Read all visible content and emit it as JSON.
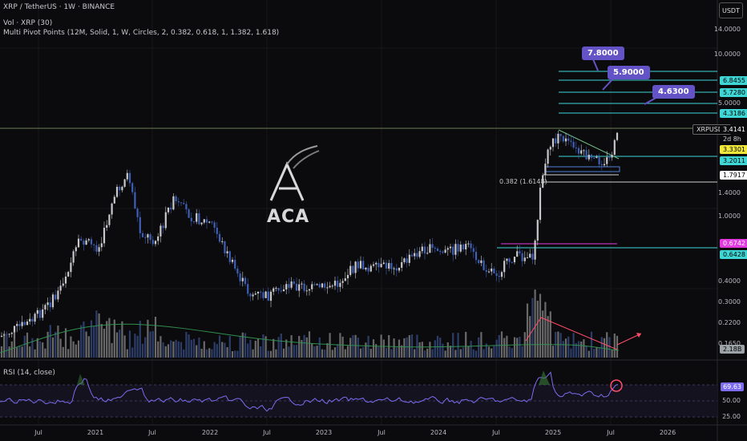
{
  "header": {
    "symbol_line": "XRP / TetherUS · 1W · BINANCE",
    "vol_line": "Vol · XRP (30)",
    "indicator_line": "Multi Pivot Points (12M, Solid, 1, W, Circles, 2, 0.382, 0.618, 1, 1.382, 1.618)",
    "rsi_line": "RSI (14, close)"
  },
  "currency_button": "USDT",
  "price_axis": [
    "14.0000",
    "10.0000",
    "5.0000",
    "1.4000",
    "1.0000",
    "0.4000",
    "0.3000",
    "0.2200",
    "0.1650"
  ],
  "price_tags": [
    {
      "text": "6.8455",
      "bg": "#3fd6d6"
    },
    {
      "text": "5.7280",
      "bg": "#3fd6d6"
    },
    {
      "text": "4.3186",
      "bg": "#3fd6d6"
    },
    {
      "text": "XRPUSDT",
      "bg": "#0b0b0d"
    },
    {
      "text": "3.4141",
      "bg": "#0b0b0d"
    },
    {
      "text": "2d 8h",
      "bg": "#0b0b0d"
    },
    {
      "text": "3.3301",
      "bg": "#f0e83a"
    },
    {
      "text": "3.2011",
      "bg": "#3fd6d6"
    },
    {
      "text": "1.7917",
      "bg": "#ffffff"
    },
    {
      "text": "0.6742",
      "bg": "#e23be0"
    },
    {
      "text": "0.6428",
      "bg": "#3fd6d6"
    },
    {
      "text": "2.18B",
      "bg": "#9ba3a8"
    }
  ],
  "rsi_axis": [
    "69.63",
    "50.00",
    "25.00"
  ],
  "rsi_value_bg": "#7c6cf0",
  "callouts": [
    "7.8000",
    "5.9000",
    "4.6300"
  ],
  "fib_label": "0.382 (1.6148)",
  "logo_text": "ACA",
  "time_axis": [
    "Jul",
    "2021",
    "Jul",
    "2022",
    "Jul",
    "2023",
    "Jul",
    "2024",
    "Jul",
    "2025",
    "Jul",
    "2026"
  ],
  "colors": {
    "up": "#c8c8cc",
    "down": "#3d5fb5",
    "pivot": "#3fd6d6",
    "rsi": "#7c6cf0",
    "accent": "#6453c7"
  }
}
